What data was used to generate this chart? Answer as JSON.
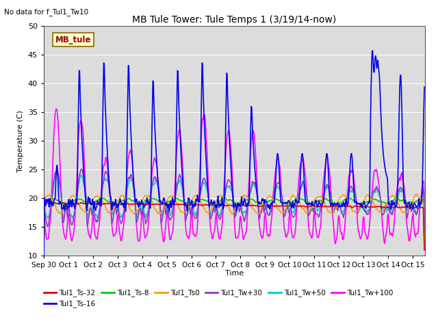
{
  "title": "MB Tule Tower: Tule Temps 1 (3/19/14-now)",
  "subtitle": "No data for f_Tul1_Tw10",
  "xlabel": "Time",
  "ylabel": "Temperature (C)",
  "ylim": [
    10,
    50
  ],
  "yticks": [
    10,
    15,
    20,
    25,
    30,
    35,
    40,
    45,
    50
  ],
  "bg_color": "#dcdcdc",
  "legend_box_label": "MB_tule",
  "legend_box_bg": "#ffffcc",
  "legend_box_border": "#886600",
  "figsize": [
    6.4,
    4.8
  ],
  "dpi": 100,
  "series": {
    "Tul1_Ts-32": {
      "color": "#dd0000",
      "lw": 1.2
    },
    "Tul1_Ts-16": {
      "color": "#0000ee",
      "lw": 1.2
    },
    "Tul1_Ts-8": {
      "color": "#00cc00",
      "lw": 1.2
    },
    "Tul1_Ts0": {
      "color": "#ff9900",
      "lw": 1.2
    },
    "Tul1_Tw+30": {
      "color": "#9933cc",
      "lw": 1.2
    },
    "Tul1_Tw+50": {
      "color": "#00cccc",
      "lw": 1.2
    },
    "Tul1_Tw+100": {
      "color": "#ff00ff",
      "lw": 1.2
    }
  }
}
